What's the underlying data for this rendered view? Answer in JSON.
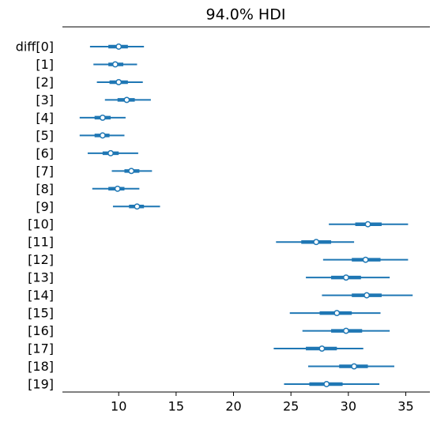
{
  "chart_data": {
    "type": "forest",
    "title": "94.0% HDI",
    "color": "#1f77b4",
    "categories": [
      "diff[0]",
      "[1]",
      "[2]",
      "[3]",
      "[4]",
      "[5]",
      "[6]",
      "[7]",
      "[8]",
      "[9]",
      "[10]",
      "[11]",
      "[12]",
      "[13]",
      "[14]",
      "[15]",
      "[16]",
      "[17]",
      "[18]",
      "[19]"
    ],
    "values": [
      10.0,
      9.7,
      10.0,
      10.7,
      8.6,
      8.6,
      9.3,
      11.1,
      9.9,
      11.6,
      31.7,
      27.2,
      31.5,
      29.8,
      31.6,
      29.0,
      29.8,
      27.7,
      30.5,
      28.1
    ],
    "hdi": [
      [
        7.5,
        12.2
      ],
      [
        7.8,
        11.6
      ],
      [
        8.1,
        12.1
      ],
      [
        8.8,
        12.8
      ],
      [
        6.6,
        10.6
      ],
      [
        6.6,
        10.5
      ],
      [
        7.3,
        11.7
      ],
      [
        9.4,
        12.9
      ],
      [
        7.7,
        11.8
      ],
      [
        9.5,
        13.6
      ],
      [
        28.3,
        35.2
      ],
      [
        23.7,
        30.5
      ],
      [
        27.8,
        35.2
      ],
      [
        26.3,
        33.6
      ],
      [
        27.7,
        35.6
      ],
      [
        24.9,
        32.8
      ],
      [
        26.0,
        33.6
      ],
      [
        23.5,
        31.3
      ],
      [
        26.5,
        34.0
      ],
      [
        24.4,
        32.7
      ]
    ],
    "iqr": [
      [
        9.1,
        10.8
      ],
      [
        9.1,
        10.4
      ],
      [
        9.2,
        10.8
      ],
      [
        9.9,
        11.4
      ],
      [
        7.9,
        9.3
      ],
      [
        7.9,
        9.2
      ],
      [
        8.6,
        10.0
      ],
      [
        10.5,
        11.8
      ],
      [
        9.1,
        10.5
      ],
      [
        10.9,
        12.2
      ],
      [
        30.6,
        32.9
      ],
      [
        25.9,
        28.5
      ],
      [
        30.3,
        32.8
      ],
      [
        28.5,
        31.1
      ],
      [
        30.3,
        32.9
      ],
      [
        27.5,
        30.3
      ],
      [
        28.5,
        31.2
      ],
      [
        26.3,
        29.0
      ],
      [
        29.2,
        31.7
      ],
      [
        26.6,
        29.5
      ]
    ],
    "xlim": [
      5.1,
      37.1
    ],
    "xticks": [
      10,
      15,
      20,
      25,
      30,
      35
    ]
  }
}
